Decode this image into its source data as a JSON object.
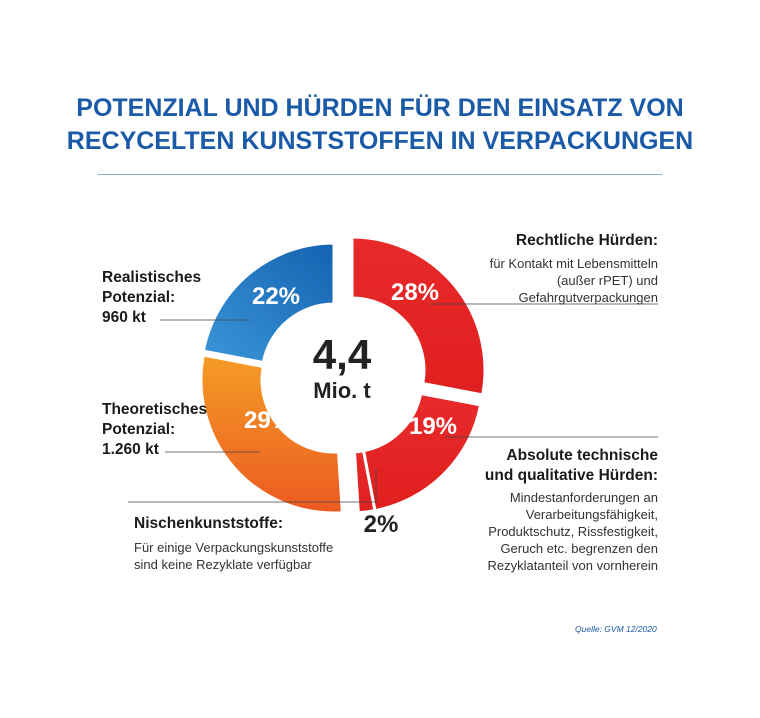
{
  "title": {
    "line1": "POTENZIAL UND HÜRDEN FÜR DEN EINSATZ VON",
    "line2": "RECYCELTEN KUNSTSTOFFEN IN VERPACKUNGEN"
  },
  "colors": {
    "title": "#1a5aa6",
    "red": "#e42527",
    "blue_dark": "#1462b0",
    "blue_light": "#3b96d8",
    "orange_top": "#f49c25",
    "orange_bottom": "#ec5a22"
  },
  "chart_data": {
    "type": "pie",
    "variant": "donut",
    "title": "POTENZIAL UND HÜRDEN FÜR DEN EINSATZ VON RECYCELTEN KUNSTSTOFFEN IN VERPACKUNGEN",
    "center_value": "4,4",
    "center_unit": "Mio. t",
    "slices": [
      {
        "key": "rechtlich",
        "value": 28,
        "label": "28%"
      },
      {
        "key": "technisch",
        "value": 19,
        "label": "19%"
      },
      {
        "key": "nischen",
        "value": 2,
        "label": "2%"
      },
      {
        "key": "theoretisch",
        "value": 29,
        "label": "29%"
      },
      {
        "key": "realistisch",
        "value": 22,
        "label": "22%"
      }
    ]
  },
  "annotations": {
    "rechtlich": {
      "heading": "Rechtliche Hürden:",
      "line1": "für Kontakt mit Lebensmitteln",
      "line2": "(außer rPET) und",
      "line3": "Gefahrgutverpackungen"
    },
    "technisch": {
      "heading1": "Absolute technische",
      "heading2": "und qualitative Hürden:",
      "line1": "Mindestanforderungen an",
      "line2": "Verarbeitungsfähigkeit,",
      "line3": "Produktschutz, Rissfestigkeit,",
      "line4": "Geruch etc. begrenzen den",
      "line5": "Rezyklatanteil von vornherein"
    },
    "realistisch": {
      "line1": "Realistisches",
      "line2": "Potenzial:",
      "line3": "960 kt"
    },
    "theoretisch": {
      "line1": "Theoretisches",
      "line2": "Potenzial:",
      "line3": "1.260 kt"
    },
    "nischen": {
      "heading": "Nischenkunststoffe:",
      "line1": "Für einige Verpackungskunststoffe",
      "line2": "sind keine Rezyklate verfügbar"
    }
  },
  "source": "Quelle: GVM 12/2020"
}
